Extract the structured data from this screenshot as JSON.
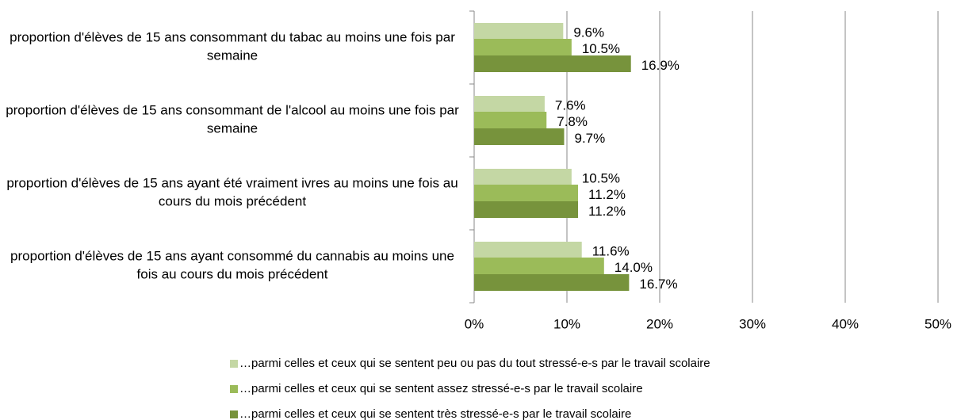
{
  "chart_data": {
    "type": "bar",
    "orientation": "horizontal",
    "categories": [
      "proportion d'élèves de 15 ans consommant du tabac au moins une fois par semaine",
      "proportion d'élèves de 15 ans consommant de l'alcool au moins une fois par semaine",
      "proportion d'élèves de 15 ans ayant été vraiment ivres au moins une fois au cours du mois précédent",
      "proportion d'élèves de 15 ans ayant consommé du cannabis au moins une fois au cours du mois précédent"
    ],
    "series": [
      {
        "name": "…parmi celles et ceux qui se sentent peu ou pas du tout stressé-e-s par le travail scolaire",
        "color": "#c4d7a4",
        "values": [
          9.6,
          7.6,
          10.5,
          11.6
        ],
        "value_labels": [
          "9.6%",
          "7.6%",
          "10.5%",
          "11.6%"
        ]
      },
      {
        "name": "…parmi celles et ceux qui se sentent assez stressé-e-s par le travail scolaire",
        "color": "#9bbb59",
        "values": [
          10.5,
          7.8,
          11.2,
          14.0
        ],
        "value_labels": [
          "10.5%",
          "7.8%",
          "11.2%",
          "14.0%"
        ]
      },
      {
        "name": "…parmi celles et ceux qui se sentent très stressé-e-s par le travail scolaire",
        "color": "#77933c",
        "values": [
          16.9,
          9.7,
          11.2,
          16.7
        ],
        "value_labels": [
          "16.9%",
          "9.7%",
          "11.2%",
          "16.7%"
        ]
      }
    ],
    "xlim": [
      0,
      50
    ],
    "xticks": [
      {
        "value": 0,
        "label": "0%"
      },
      {
        "value": 10,
        "label": "10%"
      },
      {
        "value": 20,
        "label": "20%"
      },
      {
        "value": 30,
        "label": "30%"
      },
      {
        "value": 40,
        "label": "40%"
      },
      {
        "value": 50,
        "label": "50%"
      }
    ],
    "grid": true,
    "legend": "bottom"
  }
}
